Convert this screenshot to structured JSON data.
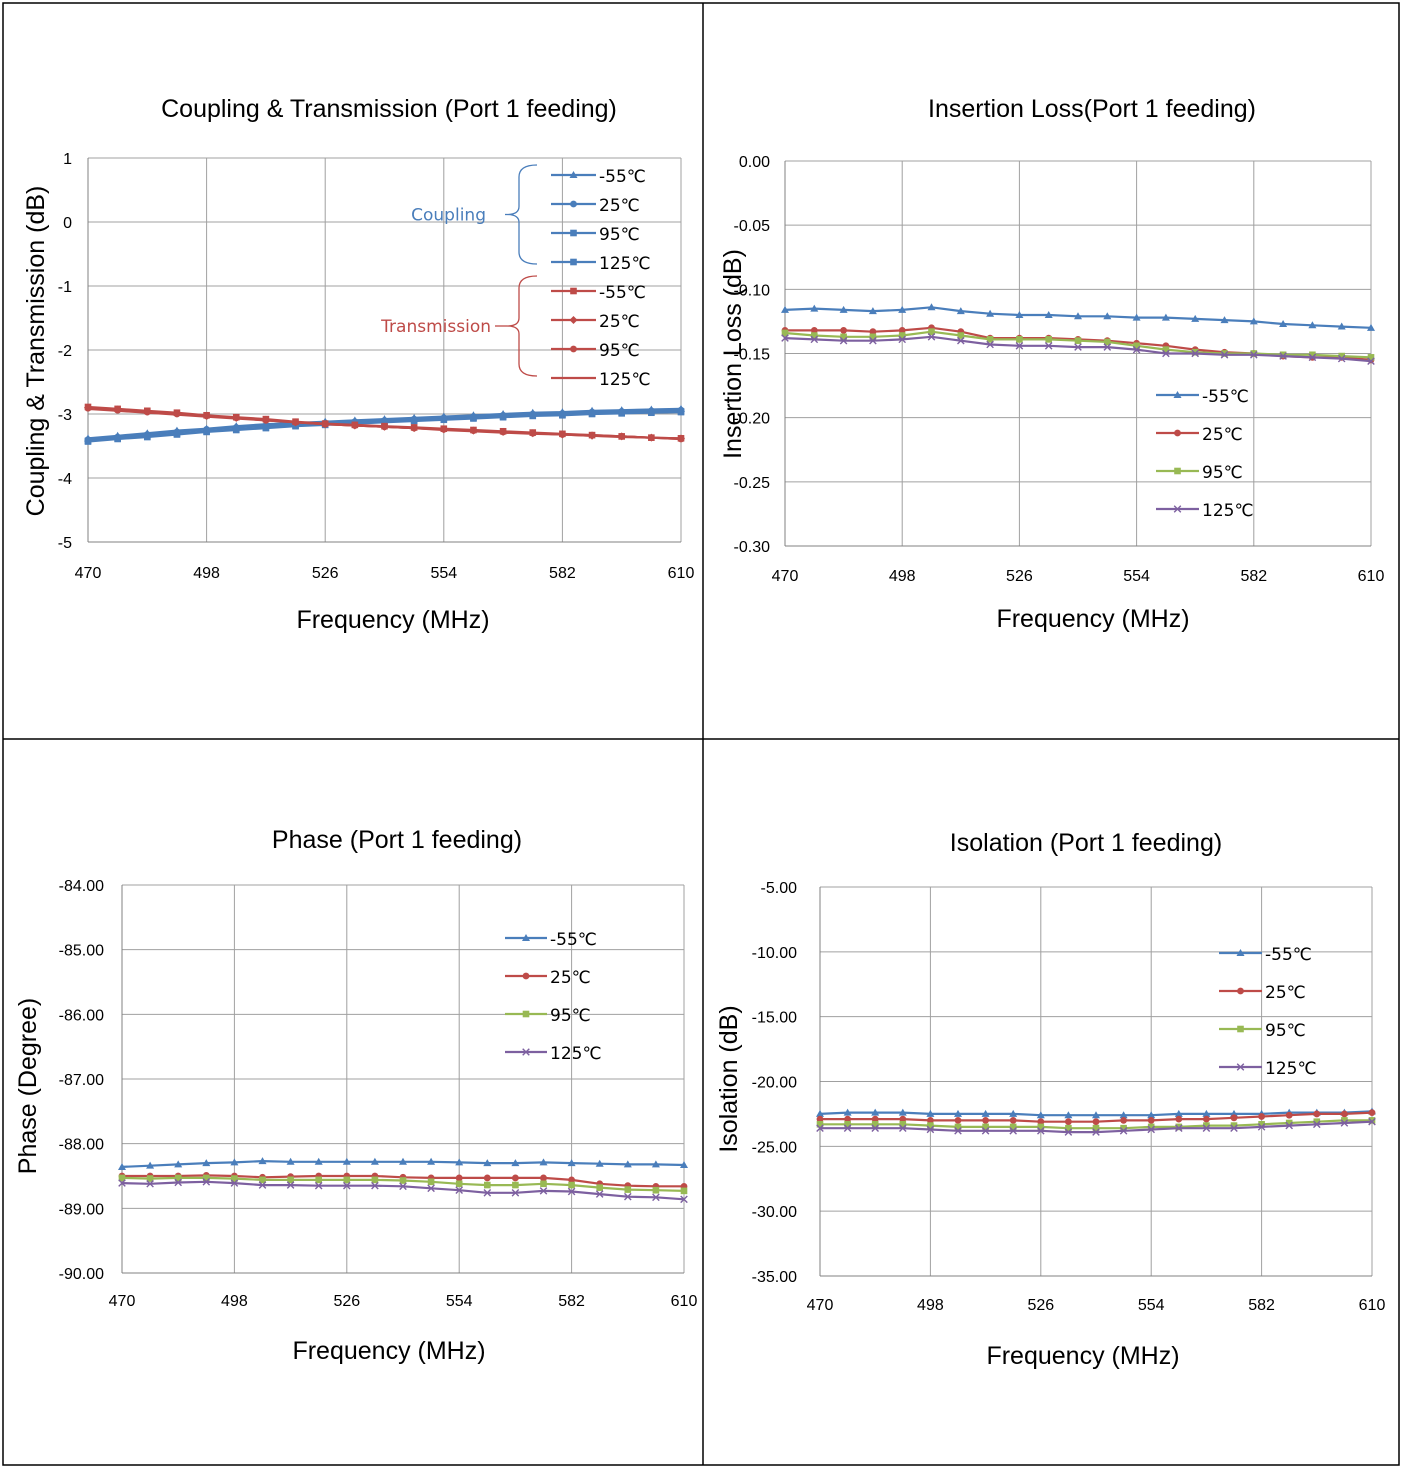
{
  "chart_data": [
    {
      "type": "line",
      "title": "Coupling & Transmission (Port 1 feeding)",
      "xlabel": "Frequency (MHz)",
      "ylabel": "Coupling & Transmission (dB)",
      "xlim": [
        470,
        610
      ],
      "ylim": [
        -5,
        1
      ],
      "xticks": [
        "470",
        "498",
        "526",
        "554",
        "582",
        "610"
      ],
      "yticks": [
        "1",
        "0",
        "-1",
        "-2",
        "-3",
        "-4",
        "-5"
      ],
      "grid": true,
      "legend_position": "top-right",
      "legend_groups": [
        {
          "label": "Coupling",
          "color": "#4a7ebb"
        },
        {
          "label": "Transmission",
          "color": "#be4b48"
        }
      ],
      "x": [
        470,
        477,
        484,
        491,
        498,
        505,
        512,
        519,
        526,
        533,
        540,
        547,
        554,
        561,
        568,
        575,
        582,
        589,
        596,
        603,
        610
      ],
      "series": [
        {
          "name": "-55℃",
          "group": "Coupling",
          "color": "#4a7ebb",
          "marker": "triangle",
          "values": [
            -3.38,
            -3.34,
            -3.3,
            -3.26,
            -3.23,
            -3.19,
            -3.16,
            -3.14,
            -3.12,
            -3.1,
            -3.08,
            -3.06,
            -3.04,
            -3.02,
            -3.0,
            -2.98,
            -2.97,
            -2.95,
            -2.94,
            -2.93,
            -2.92
          ]
        },
        {
          "name": "25℃",
          "group": "Coupling",
          "color": "#4a7ebb",
          "marker": "circle",
          "values": [
            -3.4,
            -3.36,
            -3.32,
            -3.28,
            -3.24,
            -3.21,
            -3.18,
            -3.16,
            -3.14,
            -3.12,
            -3.1,
            -3.08,
            -3.06,
            -3.04,
            -3.02,
            -3.0,
            -2.99,
            -2.97,
            -2.96,
            -2.95,
            -2.94
          ]
        },
        {
          "name": "95℃",
          "group": "Coupling",
          "color": "#4a7ebb",
          "marker": "square",
          "values": [
            -3.42,
            -3.38,
            -3.35,
            -3.31,
            -3.27,
            -3.24,
            -3.21,
            -3.18,
            -3.16,
            -3.14,
            -3.12,
            -3.1,
            -3.08,
            -3.06,
            -3.04,
            -3.02,
            -3.01,
            -2.99,
            -2.98,
            -2.97,
            -2.96
          ]
        },
        {
          "name": "125℃",
          "group": "Coupling",
          "color": "#4a7ebb",
          "marker": "square",
          "values": [
            -3.43,
            -3.39,
            -3.36,
            -3.32,
            -3.28,
            -3.25,
            -3.22,
            -3.19,
            -3.17,
            -3.15,
            -3.13,
            -3.11,
            -3.09,
            -3.07,
            -3.05,
            -3.03,
            -3.02,
            -3.0,
            -2.99,
            -2.98,
            -2.97
          ]
        },
        {
          "name": "-55℃",
          "group": "Transmission",
          "color": "#be4b48",
          "marker": "square",
          "values": [
            -2.89,
            -2.92,
            -2.95,
            -2.98,
            -3.02,
            -3.05,
            -3.08,
            -3.12,
            -3.15,
            -3.17,
            -3.19,
            -3.21,
            -3.23,
            -3.25,
            -3.27,
            -3.29,
            -3.31,
            -3.33,
            -3.35,
            -3.37,
            -3.38
          ]
        },
        {
          "name": "25℃",
          "group": "Transmission",
          "color": "#be4b48",
          "marker": "diamond",
          "values": [
            -2.9,
            -2.93,
            -2.96,
            -2.99,
            -3.03,
            -3.06,
            -3.09,
            -3.13,
            -3.16,
            -3.18,
            -3.2,
            -3.22,
            -3.24,
            -3.26,
            -3.28,
            -3.3,
            -3.32,
            -3.34,
            -3.35,
            -3.37,
            -3.38
          ]
        },
        {
          "name": "95℃",
          "group": "Transmission",
          "color": "#be4b48",
          "marker": "circle",
          "values": [
            -2.91,
            -2.94,
            -2.97,
            -3.0,
            -3.03,
            -3.06,
            -3.1,
            -3.13,
            -3.16,
            -3.18,
            -3.2,
            -3.22,
            -3.24,
            -3.26,
            -3.28,
            -3.3,
            -3.32,
            -3.33,
            -3.35,
            -3.37,
            -3.39
          ]
        },
        {
          "name": "125℃",
          "group": "Transmission",
          "color": "#be4b48",
          "marker": "none",
          "values": [
            -2.92,
            -2.95,
            -2.98,
            -3.01,
            -3.04,
            -3.07,
            -3.1,
            -3.13,
            -3.16,
            -3.18,
            -3.2,
            -3.22,
            -3.25,
            -3.27,
            -3.29,
            -3.31,
            -3.32,
            -3.34,
            -3.36,
            -3.37,
            -3.39
          ]
        }
      ]
    },
    {
      "type": "line",
      "title": "Insertion Loss(Port 1 feeding)",
      "xlabel": "Frequency (MHz)",
      "ylabel": "Insertion Loss (dB)",
      "xlim": [
        470,
        610
      ],
      "ylim": [
        -0.3,
        0.0
      ],
      "xticks": [
        "470",
        "498",
        "526",
        "554",
        "582",
        "610"
      ],
      "yticks": [
        "0.00",
        "-0.05",
        "-0.10",
        "-0.15",
        "-0.20",
        "-0.25",
        "-0.30"
      ],
      "grid": true,
      "legend_position": "right",
      "x": [
        470,
        477,
        484,
        491,
        498,
        505,
        512,
        519,
        526,
        533,
        540,
        547,
        554,
        561,
        568,
        575,
        582,
        589,
        596,
        603,
        610
      ],
      "series": [
        {
          "name": "-55℃",
          "color": "#4a7ebb",
          "marker": "triangle",
          "values": [
            -0.116,
            -0.115,
            -0.116,
            -0.117,
            -0.116,
            -0.114,
            -0.117,
            -0.119,
            -0.12,
            -0.12,
            -0.121,
            -0.121,
            -0.122,
            -0.122,
            -0.123,
            -0.124,
            -0.125,
            -0.127,
            -0.128,
            -0.129,
            -0.13
          ]
        },
        {
          "name": "25℃",
          "color": "#be4b48",
          "marker": "circle",
          "values": [
            -0.132,
            -0.132,
            -0.132,
            -0.133,
            -0.132,
            -0.13,
            -0.133,
            -0.138,
            -0.138,
            -0.138,
            -0.139,
            -0.14,
            -0.142,
            -0.144,
            -0.147,
            -0.149,
            -0.15,
            -0.152,
            -0.153,
            -0.153,
            -0.155
          ]
        },
        {
          "name": "95℃",
          "color": "#98b954",
          "marker": "square",
          "values": [
            -0.134,
            -0.136,
            -0.137,
            -0.137,
            -0.136,
            -0.133,
            -0.136,
            -0.139,
            -0.139,
            -0.139,
            -0.14,
            -0.141,
            -0.144,
            -0.147,
            -0.149,
            -0.15,
            -0.15,
            -0.151,
            -0.151,
            -0.152,
            -0.153
          ]
        },
        {
          "name": "125℃",
          "color": "#7d60a0",
          "marker": "x",
          "values": [
            -0.138,
            -0.139,
            -0.14,
            -0.14,
            -0.139,
            -0.137,
            -0.14,
            -0.143,
            -0.144,
            -0.144,
            -0.145,
            -0.145,
            -0.147,
            -0.15,
            -0.15,
            -0.151,
            -0.151,
            -0.152,
            -0.153,
            -0.154,
            -0.156
          ]
        }
      ]
    },
    {
      "type": "line",
      "title": "Phase (Port 1 feeding)",
      "xlabel": "Frequency (MHz)",
      "ylabel": "Phase (Degree)",
      "xlim": [
        470,
        610
      ],
      "ylim": [
        -90.0,
        -84.0
      ],
      "xticks": [
        "470",
        "498",
        "526",
        "554",
        "582",
        "610"
      ],
      "yticks": [
        "-84.00",
        "-85.00",
        "-86.00",
        "-87.00",
        "-88.00",
        "-89.00",
        "-90.00"
      ],
      "grid": true,
      "legend_position": "top-right",
      "x": [
        470,
        477,
        484,
        491,
        498,
        505,
        512,
        519,
        526,
        533,
        540,
        547,
        554,
        561,
        568,
        575,
        582,
        589,
        596,
        603,
        610
      ],
      "series": [
        {
          "name": "-55℃",
          "color": "#4a7ebb",
          "marker": "triangle",
          "values": [
            -88.36,
            -88.34,
            -88.32,
            -88.3,
            -88.29,
            -88.27,
            -88.28,
            -88.28,
            -88.28,
            -88.28,
            -88.28,
            -88.28,
            -88.29,
            -88.3,
            -88.3,
            -88.29,
            -88.3,
            -88.31,
            -88.32,
            -88.32,
            -88.33
          ]
        },
        {
          "name": "25℃",
          "color": "#be4b48",
          "marker": "circle",
          "values": [
            -88.5,
            -88.5,
            -88.5,
            -88.49,
            -88.5,
            -88.52,
            -88.51,
            -88.5,
            -88.5,
            -88.5,
            -88.52,
            -88.53,
            -88.53,
            -88.53,
            -88.53,
            -88.53,
            -88.56,
            -88.62,
            -88.65,
            -88.66,
            -88.66
          ]
        },
        {
          "name": "95℃",
          "color": "#98b954",
          "marker": "square",
          "values": [
            -88.53,
            -88.54,
            -88.53,
            -88.53,
            -88.54,
            -88.56,
            -88.56,
            -88.56,
            -88.56,
            -88.56,
            -88.57,
            -88.59,
            -88.62,
            -88.64,
            -88.64,
            -88.62,
            -88.64,
            -88.68,
            -88.71,
            -88.72,
            -88.73
          ]
        },
        {
          "name": "125℃",
          "color": "#7d60a0",
          "marker": "x",
          "values": [
            -88.61,
            -88.62,
            -88.6,
            -88.59,
            -88.61,
            -88.64,
            -88.64,
            -88.65,
            -88.65,
            -88.65,
            -88.66,
            -88.69,
            -88.72,
            -88.76,
            -88.76,
            -88.73,
            -88.74,
            -88.78,
            -88.82,
            -88.83,
            -88.86
          ]
        }
      ]
    },
    {
      "type": "line",
      "title": "Isolation (Port 1 feeding)",
      "xlabel": "Frequency (MHz)",
      "ylabel": "Isolation (dB)",
      "xlim": [
        470,
        610
      ],
      "ylim": [
        -35.0,
        -5.0
      ],
      "xticks": [
        "470",
        "498",
        "526",
        "554",
        "582",
        "610"
      ],
      "yticks": [
        "-5.00",
        "-10.00",
        "-15.00",
        "-20.00",
        "-25.00",
        "-30.00",
        "-35.00"
      ],
      "grid": true,
      "legend_position": "right",
      "x": [
        470,
        477,
        484,
        491,
        498,
        505,
        512,
        519,
        526,
        533,
        540,
        547,
        554,
        561,
        568,
        575,
        582,
        589,
        596,
        603,
        610
      ],
      "series": [
        {
          "name": "-55℃",
          "color": "#4a7ebb",
          "marker": "triangle",
          "values": [
            -22.5,
            -22.4,
            -22.4,
            -22.4,
            -22.5,
            -22.5,
            -22.5,
            -22.5,
            -22.6,
            -22.6,
            -22.6,
            -22.6,
            -22.6,
            -22.5,
            -22.5,
            -22.5,
            -22.5,
            -22.4,
            -22.4,
            -22.4,
            -22.3
          ]
        },
        {
          "name": "25℃",
          "color": "#be4b48",
          "marker": "circle",
          "values": [
            -22.9,
            -22.9,
            -22.9,
            -22.9,
            -23.0,
            -23.0,
            -23.0,
            -23.0,
            -23.1,
            -23.1,
            -23.1,
            -23.0,
            -23.0,
            -22.9,
            -22.9,
            -22.8,
            -22.7,
            -22.6,
            -22.5,
            -22.5,
            -22.4
          ]
        },
        {
          "name": "95℃",
          "color": "#98b954",
          "marker": "square",
          "values": [
            -23.3,
            -23.3,
            -23.3,
            -23.3,
            -23.4,
            -23.5,
            -23.5,
            -23.5,
            -23.5,
            -23.6,
            -23.6,
            -23.6,
            -23.5,
            -23.5,
            -23.4,
            -23.4,
            -23.3,
            -23.2,
            -23.1,
            -23.0,
            -23.0
          ]
        },
        {
          "name": "125℃",
          "color": "#7d60a0",
          "marker": "x",
          "values": [
            -23.6,
            -23.6,
            -23.6,
            -23.6,
            -23.7,
            -23.8,
            -23.8,
            -23.8,
            -23.8,
            -23.9,
            -23.9,
            -23.8,
            -23.7,
            -23.6,
            -23.6,
            -23.6,
            -23.5,
            -23.4,
            -23.3,
            -23.2,
            -23.1
          ]
        }
      ]
    }
  ]
}
